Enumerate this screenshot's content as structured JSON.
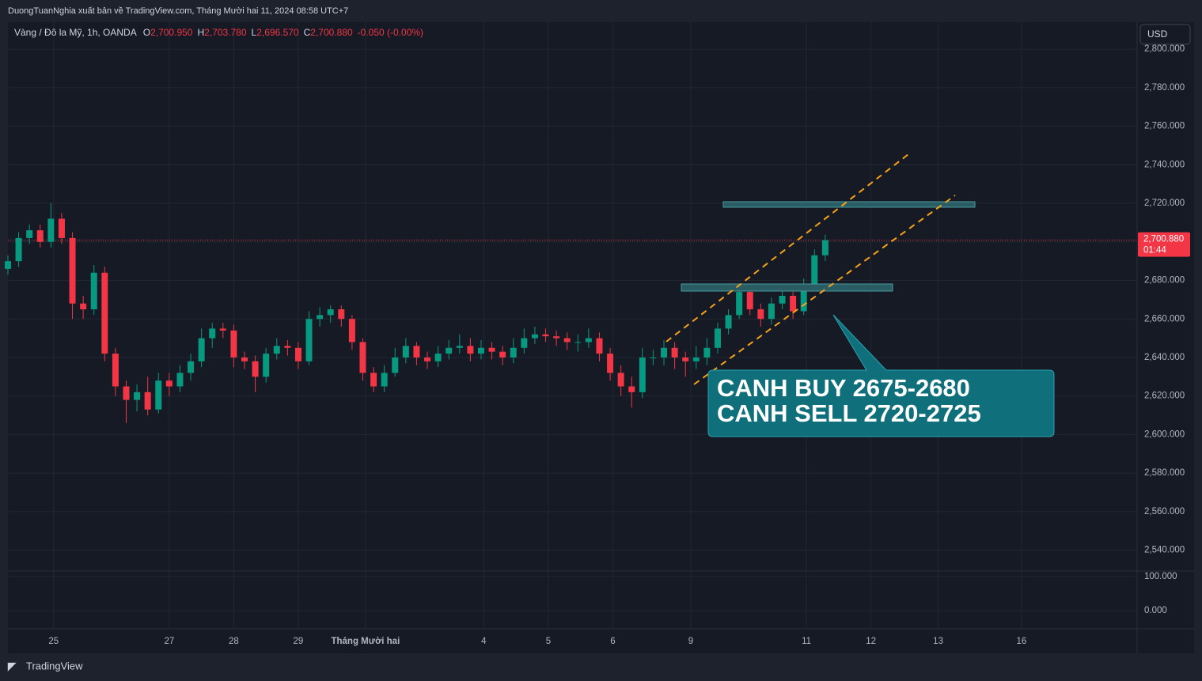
{
  "header": {
    "title": "DuongTuanNghia xuất bản về TradingView.com, Tháng Mười hai 11, 2024 08:58 UTC+7"
  },
  "legend": {
    "symbol": "Vàng / Đô la Mỹ, 1h, OANDA",
    "ohlc": [
      {
        "label": "O",
        "value": "2,700.950"
      },
      {
        "label": "H",
        "value": "2,703.780"
      },
      {
        "label": "L",
        "value": "2,696.570"
      },
      {
        "label": "C",
        "value": "2,700.880"
      }
    ],
    "change": "-0.050 (-0.00%)"
  },
  "currency_button": "USD",
  "last_price": {
    "value": 2700.88,
    "label": "2,700.880",
    "countdown": "01:44"
  },
  "annotation": {
    "lines": [
      "CANH BUY 2675-2680",
      "CANH SELL 2720-2725"
    ]
  },
  "footer": {
    "brand": "TradingView"
  },
  "chart_data": {
    "type": "candlestick",
    "up_color": "#089981",
    "down_color": "#f23645",
    "grid": true,
    "x": [
      0,
      4,
      8,
      12,
      16,
      20,
      24,
      28,
      32,
      36,
      40,
      44,
      48,
      52,
      56,
      60,
      64,
      68,
      72,
      76,
      80,
      84,
      88,
      92,
      96,
      100,
      104,
      108,
      112,
      116,
      120,
      124,
      128,
      132,
      136,
      140,
      144,
      148,
      152,
      156,
      160,
      164,
      168,
      172,
      176,
      180,
      184,
      188,
      192,
      196,
      200,
      204,
      208,
      212,
      216,
      220,
      224,
      228,
      232,
      236,
      240,
      244,
      248,
      252,
      256,
      260,
      264,
      268,
      272,
      276,
      280,
      284,
      288,
      292,
      296,
      300,
      304
    ],
    "open": [
      2686,
      2690,
      2702,
      2706,
      2700,
      2712,
      2702,
      2668,
      2665,
      2684,
      2642,
      2625,
      2618,
      2622,
      2613,
      2628,
      2625,
      2632,
      2638,
      2650,
      2655,
      2654,
      2640,
      2638,
      2630,
      2642,
      2646,
      2645,
      2638,
      2660,
      2662,
      2665,
      2660,
      2648,
      2632,
      2625,
      2632,
      2640,
      2646,
      2640,
      2638,
      2642,
      2645,
      2646,
      2642,
      2645,
      2643,
      2640,
      2645,
      2650,
      2652,
      2651,
      2650,
      2648,
      2648,
      2650,
      2642,
      2632,
      2625,
      2622,
      2640,
      2640,
      2645,
      2640,
      2638,
      2640,
      2645,
      2655,
      2662,
      2674,
      2665,
      2660,
      2668,
      2672,
      2664,
      2678,
      2693
    ],
    "high": [
      2693,
      2705,
      2709,
      2709,
      2720,
      2715,
      2705,
      2672,
      2688,
      2687,
      2645,
      2628,
      2626,
      2630,
      2632,
      2632,
      2636,
      2642,
      2655,
      2658,
      2658,
      2657,
      2643,
      2641,
      2645,
      2650,
      2649,
      2648,
      2664,
      2666,
      2667,
      2667,
      2662,
      2650,
      2635,
      2636,
      2645,
      2650,
      2648,
      2643,
      2646,
      2649,
      2652,
      2650,
      2649,
      2648,
      2646,
      2650,
      2655,
      2656,
      2655,
      2654,
      2653,
      2652,
      2655,
      2653,
      2645,
      2636,
      2630,
      2645,
      2644,
      2649,
      2648,
      2643,
      2646,
      2650,
      2658,
      2665,
      2677,
      2676,
      2668,
      2671,
      2675,
      2674,
      2681,
      2696,
      2703.78
    ],
    "low": [
      2683,
      2687,
      2699,
      2697,
      2697,
      2699,
      2660,
      2660,
      2662,
      2638,
      2620,
      2606,
      2612,
      2610,
      2611,
      2620,
      2622,
      2628,
      2635,
      2645,
      2650,
      2635,
      2634,
      2622,
      2627,
      2639,
      2641,
      2634,
      2636,
      2656,
      2658,
      2656,
      2644,
      2628,
      2622,
      2622,
      2630,
      2637,
      2636,
      2634,
      2635,
      2639,
      2642,
      2638,
      2639,
      2639,
      2636,
      2637,
      2642,
      2647,
      2648,
      2646,
      2644,
      2643,
      2645,
      2638,
      2628,
      2620,
      2614,
      2619,
      2636,
      2636,
      2634,
      2630,
      2634,
      2636,
      2642,
      2652,
      2660,
      2662,
      2656,
      2657,
      2665,
      2660,
      2662,
      2676,
      2690
    ],
    "close": [
      2690,
      2702,
      2706,
      2700,
      2712,
      2702,
      2668,
      2665,
      2684,
      2642,
      2625,
      2618,
      2622,
      2613,
      2628,
      2625,
      2632,
      2638,
      2650,
      2655,
      2654,
      2640,
      2638,
      2630,
      2642,
      2646,
      2645,
      2638,
      2660,
      2662,
      2665,
      2660,
      2648,
      2632,
      2625,
      2632,
      2640,
      2646,
      2640,
      2638,
      2642,
      2645,
      2646,
      2642,
      2645,
      2643,
      2640,
      2645,
      2650,
      2652,
      2651,
      2650,
      2648,
      2648,
      2650,
      2642,
      2632,
      2625,
      2622,
      2640,
      2640,
      2645,
      2640,
      2638,
      2640,
      2645,
      2655,
      2662,
      2674,
      2665,
      2660,
      2668,
      2672,
      2664,
      2678,
      2693,
      2700.88
    ],
    "xlim": [
      0,
      420
    ],
    "xticks": [
      {
        "value": 17,
        "label": "25"
      },
      {
        "value": 60,
        "label": "27"
      },
      {
        "value": 84,
        "label": "28"
      },
      {
        "value": 108,
        "label": "29"
      },
      {
        "value": 133,
        "label": "Tháng Mười hai"
      },
      {
        "value": 177,
        "label": "4"
      },
      {
        "value": 201,
        "label": "5"
      },
      {
        "value": 225,
        "label": "6"
      },
      {
        "value": 254,
        "label": "9"
      },
      {
        "value": 297,
        "label": "11"
      },
      {
        "value": 321,
        "label": "12"
      },
      {
        "value": 346,
        "label": "13"
      },
      {
        "value": 377,
        "label": "16"
      }
    ],
    "ylim": [
      2530,
      2814
    ],
    "yticks": [
      {
        "value": 2540,
        "label": "2,540.000"
      },
      {
        "value": 2560,
        "label": "2,560.000"
      },
      {
        "value": 2580,
        "label": "2,580.000"
      },
      {
        "value": 2600,
        "label": "2,600.000"
      },
      {
        "value": 2620,
        "label": "2,620.000"
      },
      {
        "value": 2640,
        "label": "2,640.000"
      },
      {
        "value": 2660,
        "label": "2,660.000"
      },
      {
        "value": 2680,
        "label": "2,680.000"
      },
      {
        "value": 2700,
        "label": "2,700.000"
      },
      {
        "value": 2720,
        "label": "2,720.000"
      },
      {
        "value": 2740,
        "label": "2,740.000"
      },
      {
        "value": 2760,
        "label": "2,760.000"
      },
      {
        "value": 2780,
        "label": "2,780.000"
      },
      {
        "value": 2800,
        "label": "2,800.000"
      }
    ],
    "y2lim": [
      -53,
      116
    ],
    "y2ticks": [
      {
        "value": 0,
        "label": "0.000"
      },
      {
        "value": 100,
        "label": "100.000"
      }
    ]
  }
}
